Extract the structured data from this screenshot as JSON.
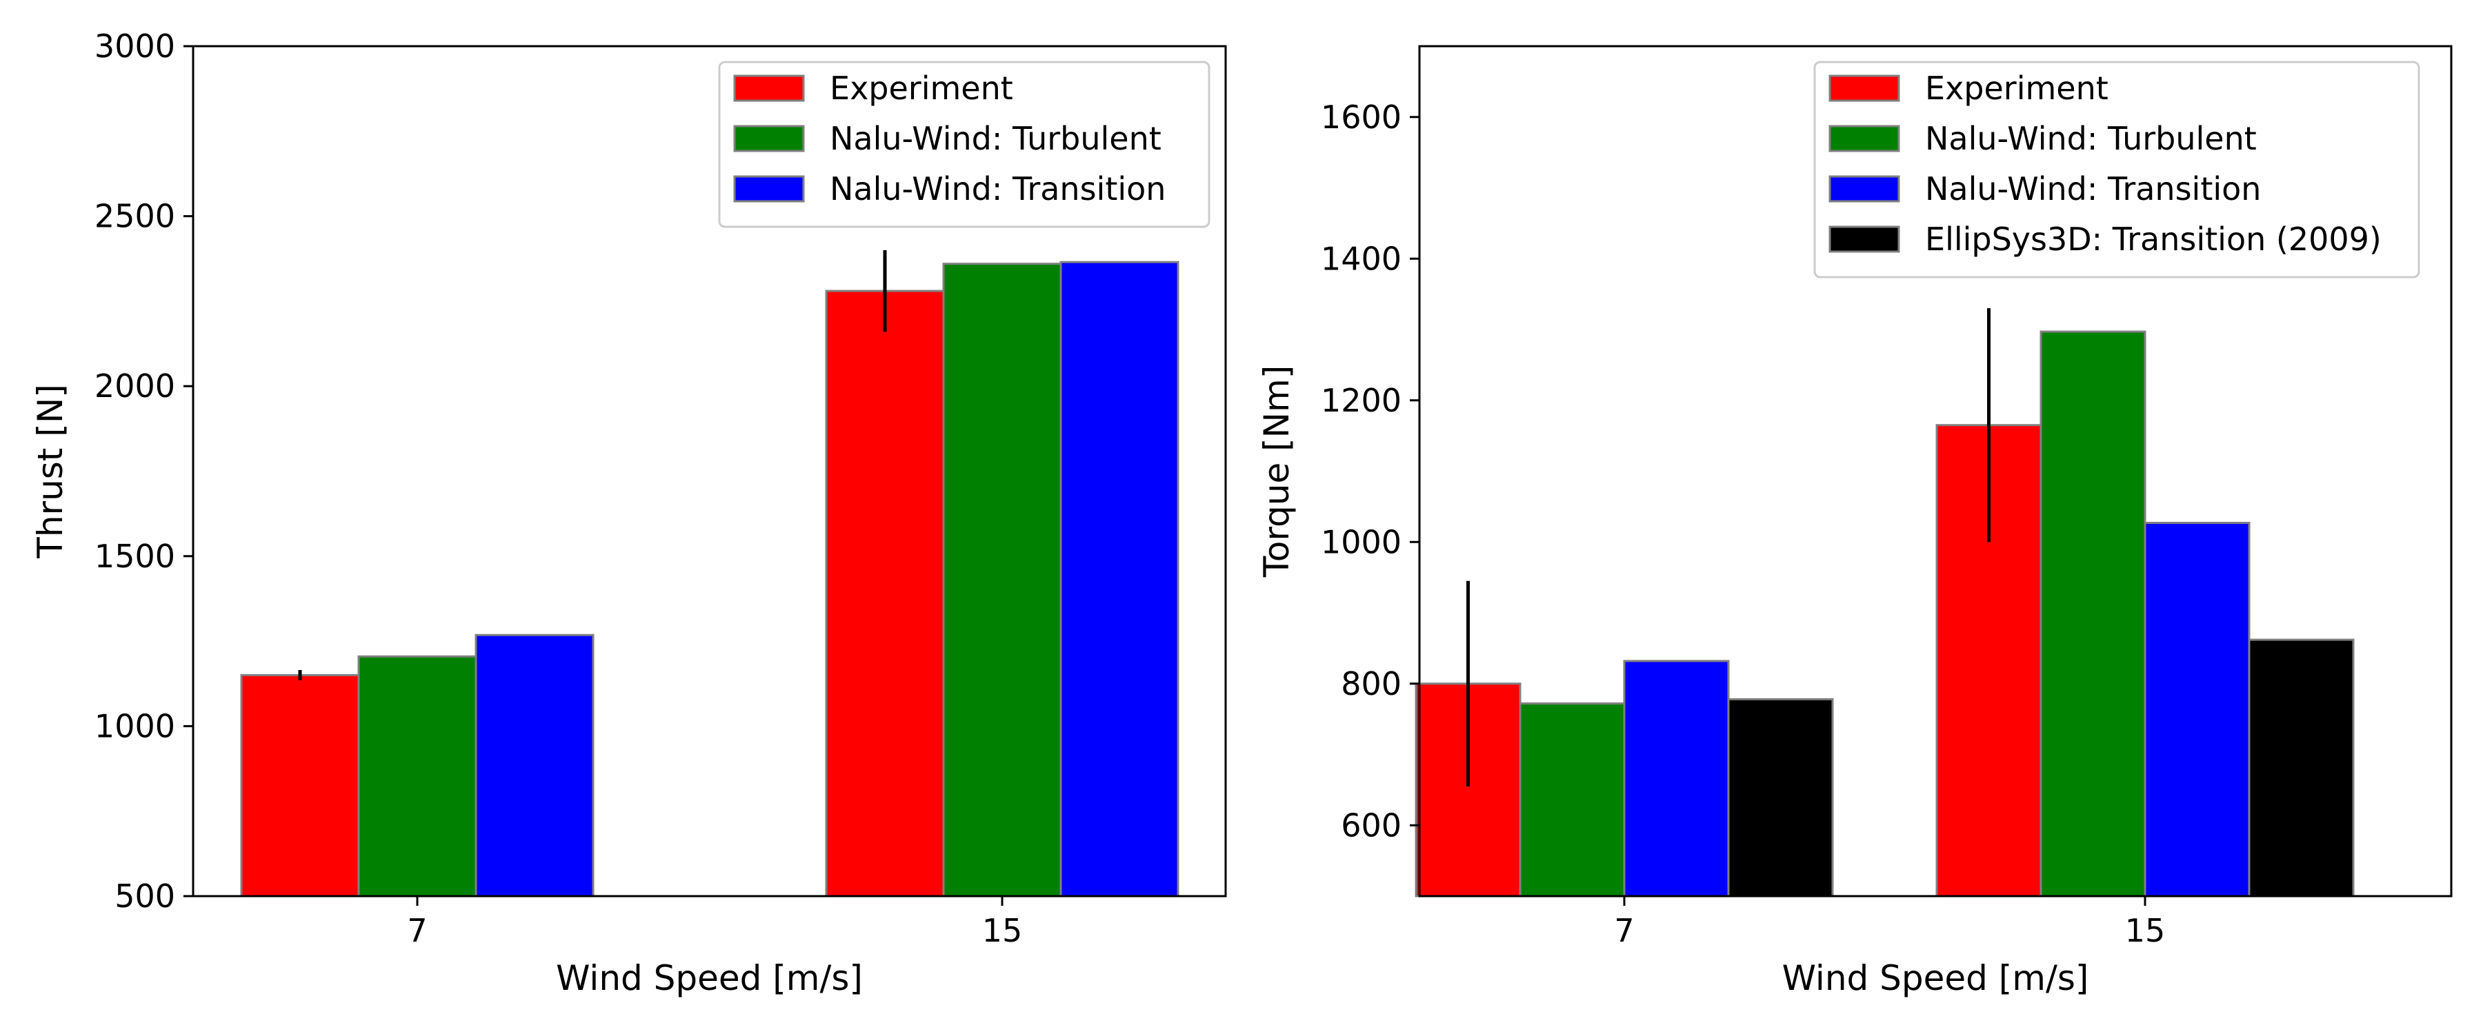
{
  "chart_data": [
    {
      "type": "bar",
      "categories": [
        "7",
        "15"
      ],
      "xlabel": "Wind Speed [m/s]",
      "ylabel": "Thrust [N]",
      "ylim": [
        500,
        3000
      ],
      "yticks": [
        500,
        1000,
        1500,
        2000,
        2500,
        3000
      ],
      "grid": false,
      "legend": "top-right",
      "series": [
        {
          "name": "Experiment",
          "color": "#ff0000",
          "values": [
            1150,
            2280
          ],
          "error": [
            15,
            120
          ]
        },
        {
          "name": "Nalu-Wind: Turbulent",
          "color": "#008000",
          "values": [
            1205,
            2360
          ]
        },
        {
          "name": "Nalu-Wind: Transition",
          "color": "#0000ff",
          "values": [
            1268,
            2365
          ]
        }
      ]
    },
    {
      "type": "bar",
      "categories": [
        "7",
        "15"
      ],
      "xlabel": "Wind Speed [m/s]",
      "ylabel": "Torque [Nm]",
      "ylim": [
        500,
        1700
      ],
      "yticks": [
        600,
        800,
        1000,
        1200,
        1400,
        1600
      ],
      "grid": false,
      "legend": "top-right",
      "series": [
        {
          "name": "Experiment",
          "color": "#ff0000",
          "values": [
            800,
            1165
          ],
          "error": [
            145,
            165
          ]
        },
        {
          "name": "Nalu-Wind: Turbulent",
          "color": "#008000",
          "values": [
            772,
            1297
          ]
        },
        {
          "name": "Nalu-Wind: Transition",
          "color": "#0000ff",
          "values": [
            832,
            1027
          ]
        },
        {
          "name": "EllipSys3D: Transition (2009)",
          "color": "#000000",
          "values": [
            778,
            862
          ]
        }
      ]
    }
  ]
}
